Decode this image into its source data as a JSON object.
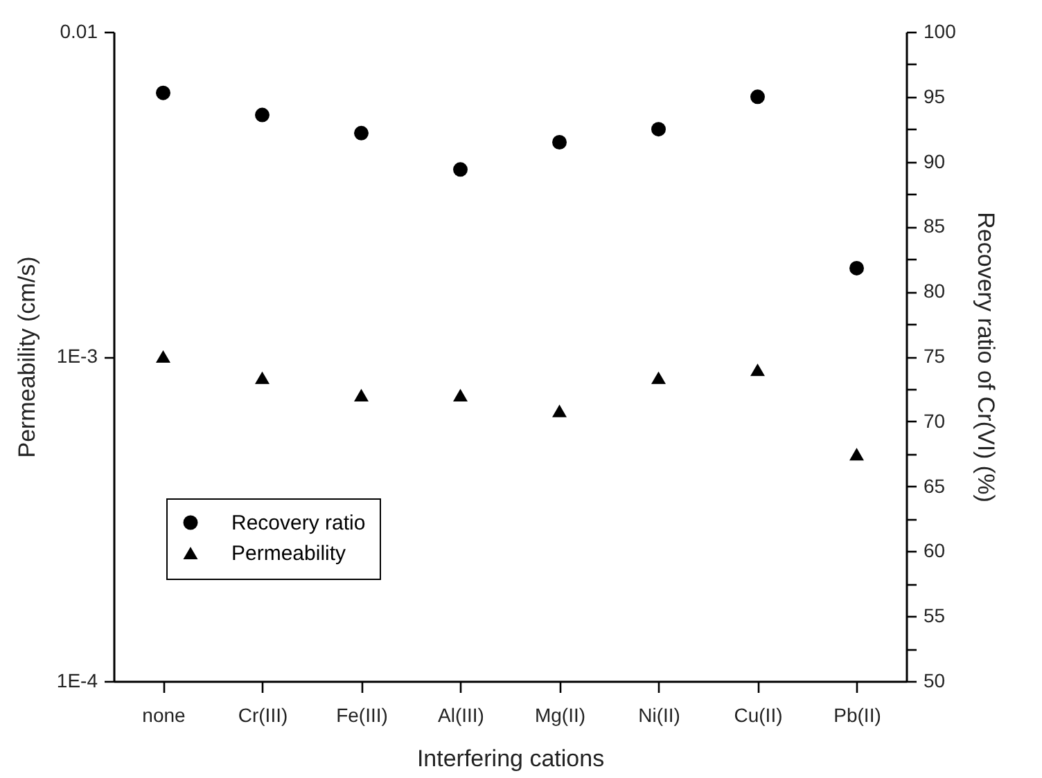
{
  "chart_data": {
    "type": "scatter",
    "xlabel": "Interfering cations",
    "ylabel": "Permeability (cm/s)",
    "y2label": "Recovery ratio of Cr(VI) (%)",
    "categories": [
      "none",
      "Cr(III)",
      "Fe(III)",
      "Al(III)",
      "Mg(II)",
      "Ni(II)",
      "Cu(II)",
      "Pb(II)"
    ],
    "series": [
      {
        "name": "Recovery ratio",
        "color": "#000000",
        "marker": "circle",
        "axis": "y2",
        "values": [
          95.3,
          93.6,
          92.2,
          89.4,
          91.5,
          92.5,
          95.0,
          81.8
        ]
      },
      {
        "name": "Permeability",
        "color": "#000000",
        "marker": "triangle",
        "values": [
          0.001,
          0.00086,
          0.00076,
          0.00076,
          0.00068,
          0.00086,
          0.00091,
          0.0005
        ]
      }
    ],
    "ylim": [
      0.0001,
      0.01
    ],
    "yticks": [
      {
        "value": 0.0001,
        "label": "1E-4"
      },
      {
        "value": 0.001,
        "label": "1E-3"
      },
      0.01
    ],
    "y2lim": [
      50,
      100
    ],
    "y2ticks": [
      50,
      {
        "value": 52.5,
        "label": null
      },
      55,
      {
        "value": 57.5,
        "label": null
      },
      60,
      {
        "value": 62.5,
        "label": null
      },
      65,
      {
        "value": 67.5,
        "label": null
      },
      70,
      {
        "value": 72.5,
        "label": null
      },
      75,
      {
        "value": 77.5,
        "label": null
      },
      80,
      {
        "value": 82.5,
        "label": null
      },
      85,
      {
        "value": 87.5,
        "label": null
      },
      90,
      {
        "value": 92.5,
        "label": null
      },
      95,
      {
        "value": 97.5,
        "label": null
      },
      100
    ],
    "log": "y",
    "grid": false,
    "legend": "bottom left"
  }
}
